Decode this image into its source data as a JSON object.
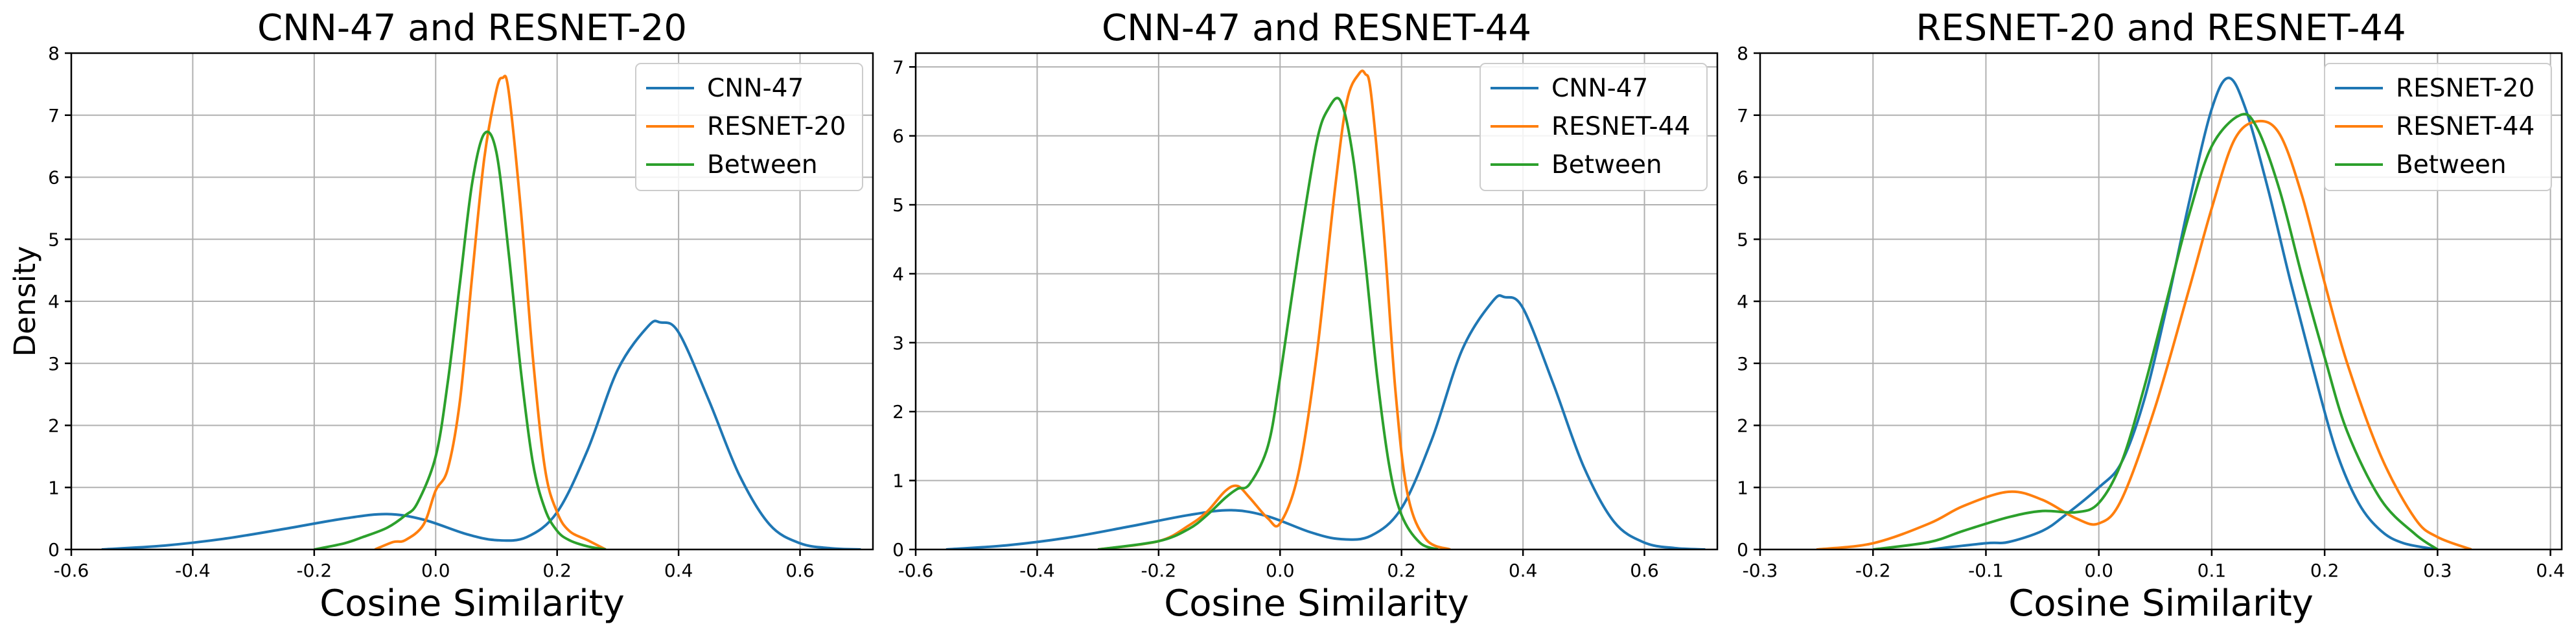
{
  "colors": {
    "blue": "#1f77b4",
    "orange": "#ff7f0e",
    "green": "#2ca02c",
    "grid": "#b0b0b0"
  },
  "chart_data": [
    {
      "type": "line",
      "title": "CNN-47 and RESNET-20",
      "xlabel": "Cosine Similarity",
      "ylabel": "Density",
      "xlim": [
        -0.6,
        0.72
      ],
      "ylim": [
        0,
        8
      ],
      "xticks": [
        "-0.6",
        "-0.4",
        "-0.2",
        "0.0",
        "0.2",
        "0.4",
        "0.6"
      ],
      "yticks": [
        "0",
        "1",
        "2",
        "3",
        "4",
        "5",
        "6",
        "7",
        "8"
      ],
      "grid": true,
      "legend_position": "top-right",
      "series": [
        {
          "name": "CNN-47",
          "color": "#1f77b4",
          "x": [
            -0.55,
            -0.45,
            -0.35,
            -0.25,
            -0.15,
            -0.08,
            -0.02,
            0.05,
            0.1,
            0.15,
            0.2,
            0.25,
            0.3,
            0.35,
            0.37,
            0.4,
            0.45,
            0.5,
            0.55,
            0.6,
            0.65,
            0.7
          ],
          "y": [
            0.0,
            0.06,
            0.17,
            0.33,
            0.5,
            0.57,
            0.48,
            0.25,
            0.15,
            0.2,
            0.6,
            1.6,
            2.9,
            3.6,
            3.66,
            3.5,
            2.4,
            1.2,
            0.4,
            0.1,
            0.02,
            0.0
          ]
        },
        {
          "name": "RESNET-20",
          "color": "#ff7f0e",
          "x": [
            -0.1,
            -0.07,
            -0.05,
            -0.02,
            0.0,
            0.02,
            0.04,
            0.06,
            0.08,
            0.1,
            0.11,
            0.12,
            0.14,
            0.16,
            0.18,
            0.2,
            0.22,
            0.25,
            0.28
          ],
          "y": [
            0.0,
            0.12,
            0.15,
            0.4,
            0.95,
            1.3,
            2.4,
            4.4,
            6.3,
            7.4,
            7.6,
            7.4,
            5.5,
            3.1,
            1.3,
            0.6,
            0.3,
            0.15,
            0.0
          ]
        },
        {
          "name": "Between",
          "color": "#2ca02c",
          "x": [
            -0.2,
            -0.15,
            -0.12,
            -0.08,
            -0.05,
            -0.03,
            0.0,
            0.02,
            0.04,
            0.06,
            0.08,
            0.1,
            0.12,
            0.14,
            0.16,
            0.18,
            0.2,
            0.22,
            0.25,
            0.28
          ],
          "y": [
            0.0,
            0.1,
            0.2,
            0.35,
            0.55,
            0.75,
            1.5,
            2.7,
            4.3,
            5.9,
            6.7,
            6.4,
            4.8,
            2.9,
            1.4,
            0.65,
            0.3,
            0.15,
            0.05,
            0.0
          ]
        }
      ]
    },
    {
      "type": "line",
      "title": "CNN-47 and RESNET-44",
      "xlabel": "Cosine Similarity",
      "ylabel": "",
      "xlim": [
        -0.6,
        0.72
      ],
      "ylim": [
        0,
        7.2
      ],
      "xticks": [
        "-0.6",
        "-0.4",
        "-0.2",
        "0.0",
        "0.2",
        "0.4",
        "0.6"
      ],
      "yticks": [
        "0",
        "1",
        "2",
        "3",
        "4",
        "5",
        "6",
        "7"
      ],
      "grid": true,
      "legend_position": "top-right",
      "series": [
        {
          "name": "CNN-47",
          "color": "#1f77b4",
          "x": [
            -0.55,
            -0.45,
            -0.35,
            -0.25,
            -0.15,
            -0.08,
            -0.02,
            0.05,
            0.1,
            0.15,
            0.2,
            0.25,
            0.3,
            0.35,
            0.37,
            0.4,
            0.45,
            0.5,
            0.55,
            0.6,
            0.65,
            0.7
          ],
          "y": [
            0.0,
            0.06,
            0.17,
            0.33,
            0.5,
            0.57,
            0.48,
            0.25,
            0.15,
            0.2,
            0.6,
            1.6,
            2.9,
            3.6,
            3.66,
            3.5,
            2.4,
            1.2,
            0.4,
            0.1,
            0.02,
            0.0
          ]
        },
        {
          "name": "RESNET-44",
          "color": "#ff7f0e",
          "x": [
            -0.3,
            -0.2,
            -0.15,
            -0.12,
            -0.09,
            -0.07,
            -0.05,
            -0.02,
            0.0,
            0.03,
            0.06,
            0.09,
            0.11,
            0.13,
            0.14,
            0.15,
            0.17,
            0.19,
            0.21,
            0.24,
            0.28
          ],
          "y": [
            0.0,
            0.12,
            0.35,
            0.55,
            0.85,
            0.92,
            0.75,
            0.45,
            0.38,
            1.1,
            2.8,
            5.2,
            6.5,
            6.9,
            6.9,
            6.6,
            4.7,
            2.3,
            0.8,
            0.15,
            0.0
          ]
        },
        {
          "name": "Between",
          "color": "#2ca02c",
          "x": [
            -0.3,
            -0.2,
            -0.15,
            -0.12,
            -0.09,
            -0.07,
            -0.05,
            -0.02,
            0.0,
            0.03,
            0.06,
            0.08,
            0.1,
            0.12,
            0.14,
            0.16,
            0.18,
            0.2,
            0.23,
            0.26
          ],
          "y": [
            0.0,
            0.12,
            0.3,
            0.5,
            0.75,
            0.88,
            0.95,
            1.5,
            2.5,
            4.3,
            5.9,
            6.4,
            6.5,
            5.7,
            4.2,
            2.5,
            1.2,
            0.5,
            0.1,
            0.0
          ]
        }
      ]
    },
    {
      "type": "line",
      "title": "RESNET-20 and RESNET-44",
      "xlabel": "Cosine Similarity",
      "ylabel": "",
      "xlim": [
        -0.3,
        0.41
      ],
      "ylim": [
        0,
        8
      ],
      "xticks": [
        "-0.3",
        "-0.2",
        "-0.1",
        "0.0",
        "0.1",
        "0.2",
        "0.3",
        "0.4"
      ],
      "yticks": [
        "0",
        "1",
        "2",
        "3",
        "4",
        "5",
        "6",
        "7",
        "8"
      ],
      "grid": true,
      "legend_position": "top-right",
      "series": [
        {
          "name": "RESNET-20",
          "color": "#1f77b4",
          "x": [
            -0.15,
            -0.1,
            -0.08,
            -0.05,
            -0.03,
            0.0,
            0.02,
            0.04,
            0.06,
            0.08,
            0.1,
            0.115,
            0.13,
            0.15,
            0.17,
            0.19,
            0.21,
            0.23,
            0.25,
            0.27,
            0.3
          ],
          "y": [
            0.0,
            0.1,
            0.12,
            0.3,
            0.55,
            1.0,
            1.4,
            2.4,
            3.9,
            5.6,
            7.1,
            7.6,
            7.1,
            5.8,
            4.3,
            2.9,
            1.6,
            0.75,
            0.3,
            0.1,
            0.0
          ]
        },
        {
          "name": "RESNET-44",
          "color": "#ff7f0e",
          "x": [
            -0.25,
            -0.2,
            -0.15,
            -0.12,
            -0.08,
            -0.05,
            -0.02,
            0.0,
            0.02,
            0.05,
            0.08,
            0.1,
            0.12,
            0.14,
            0.16,
            0.18,
            0.2,
            0.22,
            0.25,
            0.28,
            0.3,
            0.33
          ],
          "y": [
            0.0,
            0.1,
            0.42,
            0.7,
            0.93,
            0.8,
            0.5,
            0.42,
            0.8,
            2.3,
            4.2,
            5.5,
            6.6,
            6.9,
            6.7,
            5.7,
            4.3,
            3.0,
            1.5,
            0.5,
            0.2,
            0.0
          ]
        },
        {
          "name": "Between",
          "color": "#2ca02c",
          "x": [
            -0.2,
            -0.15,
            -0.12,
            -0.08,
            -0.05,
            -0.02,
            0.0,
            0.02,
            0.04,
            0.06,
            0.08,
            0.1,
            0.125,
            0.14,
            0.16,
            0.18,
            0.2,
            0.22,
            0.25,
            0.28,
            0.3
          ],
          "y": [
            0.0,
            0.12,
            0.3,
            0.52,
            0.62,
            0.6,
            0.75,
            1.4,
            2.6,
            4.0,
            5.4,
            6.5,
            7.0,
            6.8,
            5.8,
            4.4,
            3.1,
            1.9,
            0.8,
            0.25,
            0.0
          ]
        }
      ]
    }
  ]
}
